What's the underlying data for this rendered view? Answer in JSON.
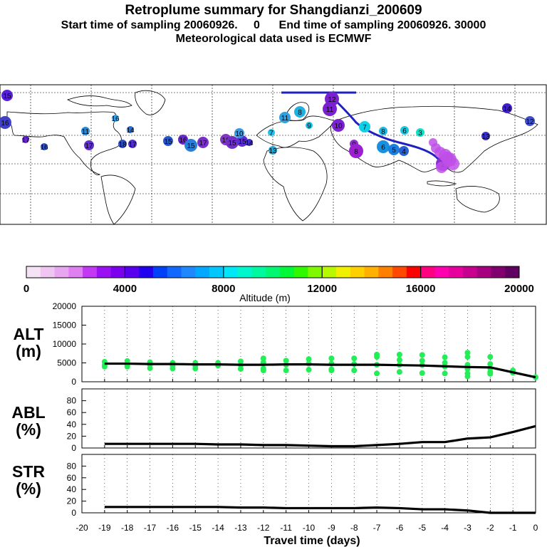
{
  "header": {
    "title": "Retroplume summary for Shangdianzi_200609",
    "subtitle1": "Start time of sampling 20060926.     0      End time of sampling 20060926. 30000",
    "subtitle2": "Meteorological data used is ECMWF"
  },
  "colors": {
    "plume_line": "#2020c0",
    "point_green": "#22ee55",
    "colorbar": [
      "#f5e2f5",
      "#efc6f2",
      "#e8a6f0",
      "#df7ff0",
      "#c238f5",
      "#9a10f2",
      "#7a00ee",
      "#5800ee",
      "#2000ee",
      "#0040f8",
      "#1068ff",
      "#1f88ff",
      "#00a8ff",
      "#00c8ff",
      "#00e8f8",
      "#00f6cc",
      "#00f8a0",
      "#00f870",
      "#00f838",
      "#30f800",
      "#80f800",
      "#b8f800",
      "#f0f000",
      "#ffd000",
      "#ffb000",
      "#ff8000",
      "#ff4800",
      "#ff0000",
      "#ff0080",
      "#ff00b0",
      "#e8009f",
      "#c80090",
      "#a60080",
      "#800070",
      "#600060"
    ]
  },
  "map": {
    "points": [
      {
        "label": "15",
        "c": "#5820d8"
      },
      {
        "label": "16",
        "c": "#4040c8"
      },
      {
        "label": "17",
        "c": "#6828d0"
      },
      {
        "label": "11",
        "c": "#2a8ad8"
      },
      {
        "label": "17",
        "c": "#6030c8"
      },
      {
        "label": "18",
        "c": "#3050c0"
      },
      {
        "label": "17",
        "c": "#5030c8"
      },
      {
        "label": "16",
        "c": "#3aa0e0"
      },
      {
        "label": "14",
        "c": "#2d6fd0"
      },
      {
        "label": "15",
        "c": "#2858c8"
      },
      {
        "label": "16",
        "c": "#6a28c8"
      },
      {
        "label": "15",
        "c": "#2a80d8"
      },
      {
        "label": "17",
        "c": "#7a30c8"
      },
      {
        "label": "16",
        "c": "#8038c0"
      },
      {
        "label": "15",
        "c": "#7030c8"
      },
      {
        "label": "15",
        "c": "#5c30d0"
      },
      {
        "label": "14",
        "c": "#4030c8"
      },
      {
        "label": "10",
        "c": "#3a98e0"
      },
      {
        "label": "11",
        "c": "#30a0e0"
      },
      {
        "label": "7",
        "c": "#20c0e8"
      },
      {
        "label": "13",
        "c": "#1aa8d8"
      },
      {
        "label": "8",
        "c": "#20b0e0"
      },
      {
        "label": "9",
        "c": "#18c0e8"
      },
      {
        "label": "12",
        "c": "#7a20d0"
      },
      {
        "label": "11",
        "c": "#7a20d0"
      },
      {
        "label": "10",
        "c": "#7a22d0"
      },
      {
        "label": "7",
        "c": "#10d0e8"
      },
      {
        "label": "8",
        "c": "#20b8e0"
      },
      {
        "label": "6",
        "c": "#18c8e0"
      },
      {
        "label": "3",
        "c": "#10e0c8"
      },
      {
        "label": "6",
        "c": "#1a90e0"
      },
      {
        "label": "5",
        "c": "#1a80e0"
      },
      {
        "label": "4",
        "c": "#2860d0"
      },
      {
        "label": "9",
        "c": "#9030c8"
      },
      {
        "label": "8",
        "c": "#9a20d0"
      },
      {
        "label": "2",
        "c": "#8a30d0"
      },
      {
        "label": "1",
        "c": "#b040e0"
      },
      {
        "label": "12",
        "c": "#4050c8"
      },
      {
        "label": "14",
        "c": "#4020c8"
      },
      {
        "label": "13",
        "c": "#3a30c8"
      },
      {
        "label": "16",
        "c": "#3050c0"
      }
    ]
  },
  "colorbar": {
    "ticks": [
      "0",
      "4000",
      "8000",
      "12000",
      "16000",
      "20000"
    ],
    "label": "Altitude (m)"
  },
  "chart_data": [
    {
      "type": "line",
      "name": "ALT",
      "ylabel": "ALT\n(m)",
      "ylabel_lines": [
        "ALT",
        "(m)"
      ],
      "ylim": [
        0,
        20000
      ],
      "yticks": [
        "0",
        "5000",
        "10000",
        "15000",
        "20000"
      ],
      "x": [
        -19,
        -18,
        -17,
        -16,
        -15,
        -14,
        -13,
        -12,
        -11,
        -10,
        -9,
        -8,
        -7,
        -6,
        -5,
        -4,
        -3,
        -2,
        -1,
        0
      ],
      "values": [
        4800,
        4800,
        4700,
        4700,
        4600,
        4600,
        4500,
        4500,
        4600,
        4600,
        4500,
        4500,
        4500,
        4400,
        4300,
        4100,
        3900,
        3800,
        2500,
        1200
      ],
      "scatter": [
        [
          -19,
          5300
        ],
        [
          -19,
          4400
        ],
        [
          -19,
          4000
        ],
        [
          -18,
          5500
        ],
        [
          -18,
          4500
        ],
        [
          -18,
          4000
        ],
        [
          -17,
          5200
        ],
        [
          -17,
          4500
        ],
        [
          -17,
          3600
        ],
        [
          -16,
          5000
        ],
        [
          -16,
          4300
        ],
        [
          -16,
          3500
        ],
        [
          -15,
          5000
        ],
        [
          -15,
          4300
        ],
        [
          -15,
          3500
        ],
        [
          -14,
          5000
        ],
        [
          -14,
          4300
        ],
        [
          -13,
          5400
        ],
        [
          -13,
          4400
        ],
        [
          -13,
          3400
        ],
        [
          -12,
          6200
        ],
        [
          -12,
          5100
        ],
        [
          -12,
          3500
        ],
        [
          -12,
          3000
        ],
        [
          -11,
          5600
        ],
        [
          -11,
          4500
        ],
        [
          -11,
          3000
        ],
        [
          -10,
          6000
        ],
        [
          -10,
          4800
        ],
        [
          -10,
          3200
        ],
        [
          -9,
          6200
        ],
        [
          -9,
          4800
        ],
        [
          -9,
          3300
        ],
        [
          -9,
          3000
        ],
        [
          -8,
          6200
        ],
        [
          -8,
          4700
        ],
        [
          -8,
          3000
        ],
        [
          -7,
          7200
        ],
        [
          -7,
          6600
        ],
        [
          -7,
          4500
        ],
        [
          -7,
          2200
        ],
        [
          -6,
          7200
        ],
        [
          -6,
          5800
        ],
        [
          -6,
          4500
        ],
        [
          -6,
          2600
        ],
        [
          -5,
          7100
        ],
        [
          -5,
          5600
        ],
        [
          -5,
          4400
        ],
        [
          -5,
          2300
        ],
        [
          -4,
          6500
        ],
        [
          -4,
          5000
        ],
        [
          -4,
          4000
        ],
        [
          -4,
          2200
        ],
        [
          -3,
          7700
        ],
        [
          -3,
          6600
        ],
        [
          -3,
          4500
        ],
        [
          -3,
          3400
        ],
        [
          -3,
          2200
        ],
        [
          -3,
          1400
        ],
        [
          -2,
          6600
        ],
        [
          -2,
          4700
        ],
        [
          -2,
          3600
        ],
        [
          -2,
          2600
        ],
        [
          -2,
          2100
        ],
        [
          -1,
          3000
        ],
        [
          -1,
          2400
        ],
        [
          0,
          1200
        ]
      ]
    },
    {
      "type": "line",
      "name": "ABL",
      "ylabel_lines": [
        "ABL",
        "(%)"
      ],
      "ylim": [
        0,
        100
      ],
      "yticks": [
        "0",
        "20",
        "40",
        "60",
        "80"
      ],
      "x": [
        -19,
        -18,
        -17,
        -16,
        -15,
        -14,
        -13,
        -12,
        -11,
        -10,
        -9,
        -8,
        -7,
        -6,
        -5,
        -4,
        -3,
        -2,
        -1,
        0
      ],
      "values": [
        7,
        7,
        7,
        7,
        7,
        6,
        6,
        5,
        5,
        4,
        3,
        3,
        5,
        7,
        10,
        10,
        16,
        18,
        27,
        37
      ]
    },
    {
      "type": "line",
      "name": "STR",
      "ylabel_lines": [
        "STR",
        "(%)"
      ],
      "ylim": [
        0,
        100
      ],
      "yticks": [
        "0",
        "20",
        "40",
        "60",
        "80"
      ],
      "x": [
        -19,
        -18,
        -17,
        -16,
        -15,
        -14,
        -13,
        -12,
        -11,
        -10,
        -9,
        -8,
        -7,
        -6,
        -5,
        -4,
        -3,
        -2,
        -1,
        0
      ],
      "values": [
        10,
        10,
        10,
        10,
        10,
        10,
        9,
        9,
        8,
        8,
        8,
        8,
        9,
        8,
        6,
        6,
        4,
        0,
        0,
        0
      ]
    }
  ],
  "xaxis": {
    "ticks": [
      "-20",
      "-19",
      "-18",
      "-17",
      "-16",
      "-15",
      "-14",
      "-13",
      "-12",
      "-11",
      "-10",
      "-9",
      "-8",
      "-7",
      "-6",
      "-5",
      "-4",
      "-3",
      "-2",
      "-1",
      "0"
    ],
    "label": "Travel time (days)"
  }
}
